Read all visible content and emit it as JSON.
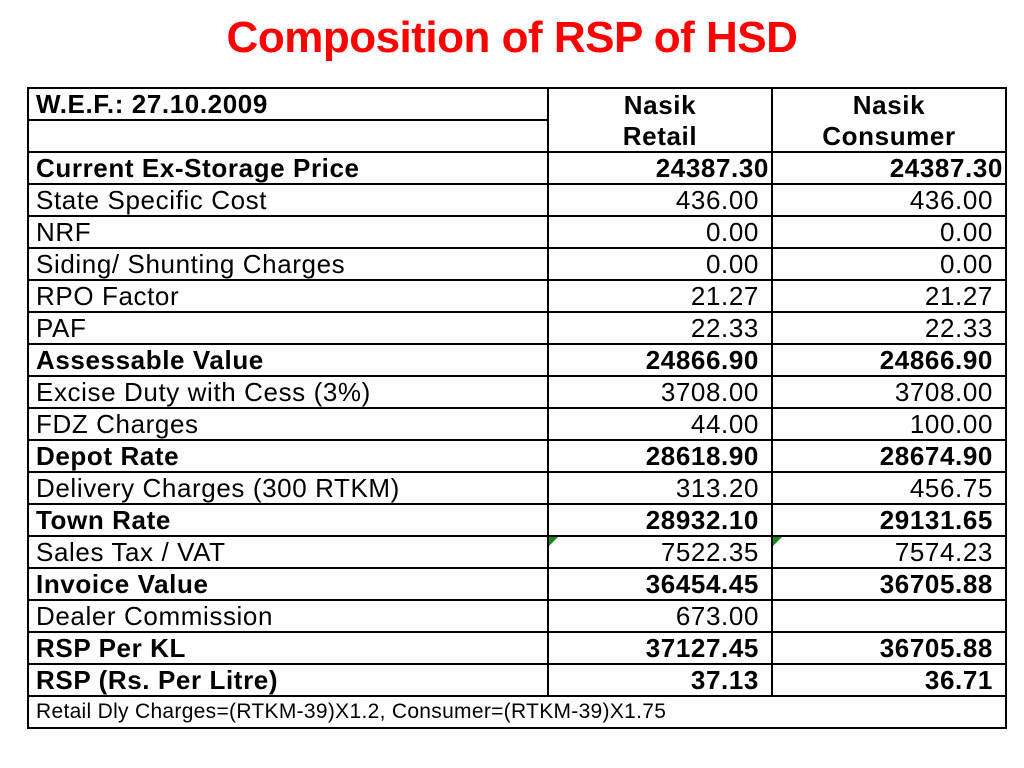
{
  "title": "Composition of RSP of HSD",
  "table": {
    "header": {
      "label": "W.E.F.: 27.10.2009",
      "col1_line1": "Nasik",
      "col1_line2": "Retail",
      "col2_line1": "Nasik",
      "col2_line2": "Consumer"
    },
    "rows": [
      {
        "label": "Current Ex-Storage Price",
        "retail": "24387.30",
        "consumer": "24387.30",
        "bold": true
      },
      {
        "label": "State Specific Cost",
        "retail": "436.00",
        "consumer": "436.00",
        "bold": false
      },
      {
        "label": "NRF",
        "retail": "0.00",
        "consumer": "0.00",
        "bold": false
      },
      {
        "label": "Siding/ Shunting Charges",
        "retail": "0.00",
        "consumer": "0.00",
        "bold": false
      },
      {
        "label": "RPO Factor",
        "retail": "21.27",
        "consumer": "21.27",
        "bold": false
      },
      {
        "label": "PAF",
        "retail": "22.33",
        "consumer": "22.33",
        "bold": false
      },
      {
        "label": "Assessable Value",
        "retail": "24866.90",
        "consumer": "24866.90",
        "bold": true
      },
      {
        "label": "Excise Duty with Cess (3%)",
        "retail": "3708.00",
        "consumer": "3708.00",
        "bold": false
      },
      {
        "label": "FDZ Charges",
        "retail": "44.00",
        "consumer": "100.00",
        "bold": false
      },
      {
        "label": "Depot Rate",
        "retail": "28618.90",
        "consumer": "28674.90",
        "bold": true
      },
      {
        "label": "Delivery Charges (300 RTKM)",
        "retail": "313.20",
        "consumer": "456.75",
        "bold": false
      },
      {
        "label": "Town Rate",
        "retail": "28932.10",
        "consumer": "29131.65",
        "bold": true
      },
      {
        "label": "Sales Tax / VAT",
        "retail": "7522.35",
        "consumer": "7574.23",
        "bold": false
      },
      {
        "label": "Invoice Value",
        "retail": "36454.45",
        "consumer": "36705.88",
        "bold": true
      },
      {
        "label": "Dealer Commission",
        "retail": "673.00",
        "consumer": "",
        "bold": false
      },
      {
        "label": "RSP Per KL",
        "retail": "37127.45",
        "consumer": "36705.88",
        "bold": true
      },
      {
        "label": "RSP (Rs. Per Litre)",
        "retail": "37.13",
        "consumer": "36.71",
        "bold": true
      }
    ],
    "footnote": "Retail Dly Charges=(RTKM-39)X1.2, Consumer=(RTKM-39)X1.75"
  },
  "colors": {
    "title": "#ff0000",
    "border": "#000000",
    "cell_flag": "#1a8a1a"
  },
  "icons": {
    "cell_flag": "green-triangle-comment-marker"
  }
}
